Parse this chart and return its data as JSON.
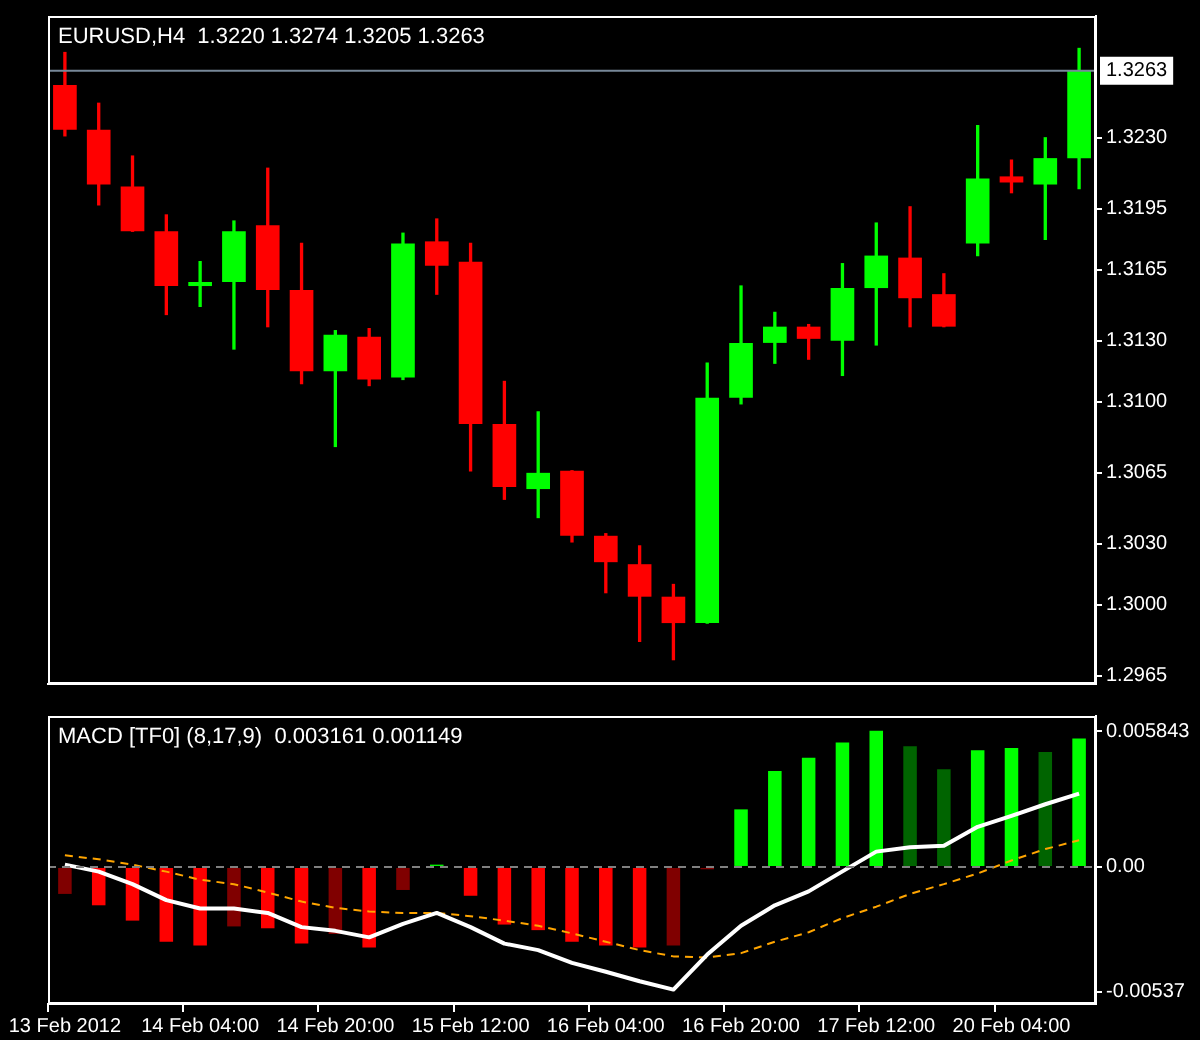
{
  "chart_data": [
    {
      "type": "candlestick",
      "title": "EURUSD,H4  1.3220 1.3274 1.3205 1.3263",
      "ohlc": [
        [
          1.3256,
          1.3272,
          1.3231,
          1.3234
        ],
        [
          1.3234,
          1.3247,
          1.3197,
          1.3207
        ],
        [
          1.3206,
          1.3221,
          1.3184,
          1.3184
        ],
        [
          1.3184,
          1.3192,
          1.3143,
          1.3157
        ],
        [
          1.3157,
          1.3169,
          1.3147,
          1.3159
        ],
        [
          1.3159,
          1.3189,
          1.3126,
          1.3184
        ],
        [
          1.3187,
          1.3215,
          1.3137,
          1.3155
        ],
        [
          1.3155,
          1.3178,
          1.3109,
          1.3115
        ],
        [
          1.3115,
          1.3135,
          1.3078,
          1.3133
        ],
        [
          1.3132,
          1.3136,
          1.3108,
          1.3111
        ],
        [
          1.3112,
          1.3183,
          1.3111,
          1.3178
        ],
        [
          1.3179,
          1.319,
          1.3153,
          1.3167
        ],
        [
          1.3169,
          1.3178,
          1.3066,
          1.3089
        ],
        [
          1.3089,
          1.311,
          1.3052,
          1.3058
        ],
        [
          1.3057,
          1.3095,
          1.3043,
          1.3065
        ],
        [
          1.3066,
          1.3066,
          1.3031,
          1.3034
        ],
        [
          1.3034,
          1.3035,
          1.3006,
          1.3021
        ],
        [
          1.302,
          1.3029,
          1.2982,
          1.3004
        ],
        [
          1.3004,
          1.301,
          1.2973,
          1.2991
        ],
        [
          1.2991,
          1.3119,
          1.2991,
          1.3102
        ],
        [
          1.3102,
          1.3157,
          1.3099,
          1.3129
        ],
        [
          1.3129,
          1.3144,
          1.3119,
          1.3137
        ],
        [
          1.3137,
          1.3138,
          1.3121,
          1.3131
        ],
        [
          1.313,
          1.3168,
          1.3113,
          1.3156
        ],
        [
          1.3156,
          1.3188,
          1.3128,
          1.3172
        ],
        [
          1.3171,
          1.3196,
          1.3137,
          1.3151
        ],
        [
          1.3153,
          1.3163,
          1.3137,
          1.3137
        ],
        [
          1.3178,
          1.3236,
          1.3172,
          1.321
        ],
        [
          1.3211,
          1.3219,
          1.3203,
          1.3208
        ],
        [
          1.3207,
          1.323,
          1.318,
          1.322
        ],
        [
          1.322,
          1.3274,
          1.3205,
          1.3263
        ]
      ],
      "colors": [
        "#ff0000",
        "#ff0000",
        "#ff0000",
        "#ff0000",
        "#00ff00",
        "#00ff00",
        "#ff0000",
        "#ff0000",
        "#00ff00",
        "#ff0000",
        "#00ff00",
        "#ff0000",
        "#ff0000",
        "#ff0000",
        "#00ff00",
        "#ff0000",
        "#ff0000",
        "#ff0000",
        "#ff0000",
        "#00ff00",
        "#00ff00",
        "#00ff00",
        "#ff0000",
        "#00ff00",
        "#00ff00",
        "#ff0000",
        "#ff0000",
        "#00ff00",
        "#ff0000",
        "#00ff00",
        "#00ff00"
      ],
      "ylim": [
        1.2961,
        1.329
      ],
      "yticks": [
        {
          "value": 1.323,
          "label": "1.3230"
        },
        1.3195,
        1.3165,
        {
          "value": 1.313,
          "label": "1.3130"
        },
        {
          "value": 1.31,
          "label": "1.3100"
        },
        1.3065,
        {
          "value": 1.303,
          "label": "1.3030"
        },
        {
          "value": 1.3,
          "label": "1.3000"
        },
        1.2965
      ],
      "ref_lines": [
        {
          "axis": "y",
          "value": 1.3263,
          "label": "1.3263",
          "color": "#778899"
        }
      ],
      "tick_labels": "y"
    },
    {
      "type": "bar",
      "title": "MACD [TF0] (8,17,9)  0.003161 0.001149",
      "categories": [
        "13 Feb 2012",
        null,
        null,
        null,
        "14 Feb 04:00",
        null,
        null,
        null,
        "14 Feb 20:00",
        null,
        null,
        null,
        "15 Feb 12:00",
        null,
        null,
        null,
        "16 Feb 04:00",
        null,
        null,
        null,
        "16 Feb 20:00",
        null,
        null,
        null,
        "17 Feb 12:00",
        null,
        null,
        null,
        "20 Feb 04:00",
        null,
        null
      ],
      "series": [
        {
          "type": "bar",
          "colors": [
            "#800000",
            "#ff0000",
            "#ff0000",
            "#ff0000",
            "#ff0000",
            "#800000",
            "#ff0000",
            "#ff0000",
            "#800000",
            "#ff0000",
            "#800000",
            "#00ff00",
            "#ff0000",
            "#ff0000",
            "#ff0000",
            "#ff0000",
            "#ff0000",
            "#ff0000",
            "#800000",
            "#800000",
            "#00ff00",
            "#00ff00",
            "#00ff00",
            "#00ff00",
            "#00ff00",
            "#006400",
            "#006400",
            "#00ff00",
            "#00ff00",
            "#006400",
            "#00ff00"
          ],
          "values": [
            -0.00116,
            -0.00165,
            -0.00231,
            -0.00322,
            -0.00338,
            -0.00256,
            -0.00264,
            -0.0033,
            -0.00289,
            -0.00347,
            -0.00099,
            0.0001,
            -0.00124,
            -0.00248,
            -0.00272,
            -0.00322,
            -0.00338,
            -0.00347,
            -0.00338,
            -0.0001,
            0.00248,
            0.00413,
            0.0047,
            0.00536,
            0.00586,
            0.0052,
            0.00421,
            0.00503,
            0.00512,
            0.00495,
            0.00553
          ]
        },
        {
          "type": "line",
          "color": "#ffffff",
          "line_style": "solid",
          "values": [
            0.0001,
            -0.0002,
            -0.00074,
            -0.00143,
            -0.00179,
            -0.00179,
            -0.00198,
            -0.00259,
            -0.00275,
            -0.00303,
            -0.00245,
            -0.00198,
            -0.00259,
            -0.0033,
            -0.00358,
            -0.00413,
            -0.00451,
            -0.00492,
            -0.00528,
            -0.00377,
            -0.00253,
            -0.00165,
            -0.00105,
            -0.00019,
            0.00066,
            0.00085,
            0.00091,
            0.00173,
            0.0022,
            0.0027,
            0.003161
          ]
        },
        {
          "type": "line",
          "color": "#ffa500",
          "line_style": "dashed",
          "values": [
            0.0005,
            0.00033,
            0.0001,
            -0.0002,
            -0.00055,
            -0.00074,
            -0.0011,
            -0.00149,
            -0.00176,
            -0.00192,
            -0.00198,
            -0.00198,
            -0.00212,
            -0.00231,
            -0.00253,
            -0.00286,
            -0.00322,
            -0.00358,
            -0.00385,
            -0.0039,
            -0.00371,
            -0.00322,
            -0.00281,
            -0.0022,
            -0.00171,
            -0.00116,
            -0.00074,
            -0.00028,
            0.00028,
            0.00077,
            0.001149
          ]
        }
      ],
      "marker": "none",
      "ylim": [
        -0.0059,
        0.0065
      ],
      "yticks": [
        0.005843,
        {
          "value": 0,
          "label": "0.00"
        },
        -0.00537
      ],
      "ref_lines": [
        {
          "axis": "y",
          "value": 0,
          "color": "#808080",
          "line_style": "dashed"
        }
      ]
    }
  ]
}
